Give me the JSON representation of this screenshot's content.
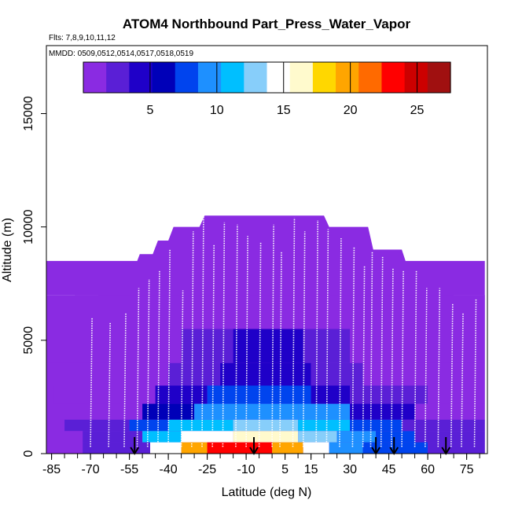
{
  "chart_data": {
    "type": "heatmap",
    "title": "ATOM4 Northbound Part_Press_Water_Vapor",
    "flights_label": "Flts: 7,8,9,10,11,12",
    "dates_label": "MMDD: 0509,0512,0514,0517,0518,0519",
    "xlabel": "Latitude (deg N)",
    "ylabel": "Altitude (m)",
    "xlim": [
      -87,
      83
    ],
    "ylim": [
      0,
      18000
    ],
    "x_ticks": [
      -85,
      -70,
      -55,
      -40,
      -25,
      -10,
      5,
      15,
      30,
      45,
      60,
      75
    ],
    "y_ticks": [
      0,
      5000,
      10000,
      15000
    ],
    "colorbar": {
      "min": 0,
      "max": 27.5,
      "ticks": [
        5,
        10,
        15,
        20,
        25
      ],
      "colors": [
        "#8a2be2",
        "#5a1fd6",
        "#1f00c8",
        "#0000b8",
        "#0044ee",
        "#1e90ff",
        "#00bfff",
        "#87cefa",
        "#ffffff",
        "#fffacd",
        "#ffd700",
        "#ffa500",
        "#ff6a00",
        "#ff0000",
        "#cc0000",
        "#a01010"
      ]
    },
    "ceiling_profile": [
      {
        "lat": -87,
        "top": 6000
      },
      {
        "lat": -78,
        "top": 6000
      },
      {
        "lat": -76,
        "top": 7000
      },
      {
        "lat": -67,
        "top": 7000
      },
      {
        "lat": -65,
        "top": 7700
      },
      {
        "lat": -60,
        "top": 7700
      },
      {
        "lat": -58,
        "top": 8200
      },
      {
        "lat": -53,
        "top": 8200
      },
      {
        "lat": -51,
        "top": 8800
      },
      {
        "lat": -46,
        "top": 8800
      },
      {
        "lat": -44,
        "top": 9400
      },
      {
        "lat": -40,
        "top": 9400
      },
      {
        "lat": -38,
        "top": 10000
      },
      {
        "lat": -28,
        "top": 10000
      },
      {
        "lat": -26,
        "top": 10500
      },
      {
        "lat": 20,
        "top": 10500
      },
      {
        "lat": 22,
        "top": 10000
      },
      {
        "lat": 37,
        "top": 10000
      },
      {
        "lat": 39,
        "top": 9000
      },
      {
        "lat": 50,
        "top": 9000
      },
      {
        "lat": 52,
        "top": 8300
      },
      {
        "lat": 60,
        "top": 8300
      },
      {
        "lat": 62,
        "top": 7600
      },
      {
        "lat": 68,
        "top": 7600
      },
      {
        "lat": 70,
        "top": 7000
      },
      {
        "lat": 82,
        "top": 7000
      }
    ],
    "layers": [
      {
        "y0": 0,
        "y1": 500,
        "x0": -73,
        "x1": 82,
        "segments": [
          {
            "from": -73,
            "to": -47,
            "value": 3
          },
          {
            "from": -47,
            "to": -35,
            "value": 15
          },
          {
            "from": -35,
            "to": -25,
            "value": 20
          },
          {
            "from": -25,
            "to": 0,
            "value": 23
          },
          {
            "from": 0,
            "to": 12,
            "value": 20
          },
          {
            "from": 12,
            "to": 22,
            "value": 15
          },
          {
            "from": 22,
            "to": 35,
            "value": 10
          },
          {
            "from": 35,
            "to": 45,
            "value": 8
          },
          {
            "from": 45,
            "to": 60,
            "value": 8
          },
          {
            "from": 60,
            "to": 82,
            "value": 3
          }
        ]
      },
      {
        "y0": 500,
        "y1": 1000,
        "x0": -73,
        "x1": 82,
        "segments": [
          {
            "from": -73,
            "to": -50,
            "value": 3
          },
          {
            "from": -50,
            "to": -35,
            "value": 12
          },
          {
            "from": -35,
            "to": -15,
            "value": 15
          },
          {
            "from": -15,
            "to": 10,
            "value": 16
          },
          {
            "from": 10,
            "to": 25,
            "value": 13
          },
          {
            "from": 25,
            "to": 40,
            "value": 9
          },
          {
            "from": 40,
            "to": 55,
            "value": 7
          },
          {
            "from": 55,
            "to": 82,
            "value": 3
          }
        ]
      },
      {
        "y0": 1000,
        "y1": 1500,
        "x0": -80,
        "x1": 82,
        "segments": [
          {
            "from": -80,
            "to": -55,
            "value": 2
          },
          {
            "from": -55,
            "to": -40,
            "value": 7
          },
          {
            "from": -40,
            "to": -15,
            "value": 11
          },
          {
            "from": -15,
            "to": 10,
            "value": 13
          },
          {
            "from": 10,
            "to": 30,
            "value": 11
          },
          {
            "from": 30,
            "to": 50,
            "value": 7
          },
          {
            "from": 50,
            "to": 82,
            "value": 3
          }
        ]
      },
      {
        "y0": 1500,
        "y1": 2200,
        "x0": -82,
        "x1": 82,
        "segments": [
          {
            "from": -82,
            "to": -50,
            "value": 1.5
          },
          {
            "from": -50,
            "to": -30,
            "value": 6
          },
          {
            "from": -30,
            "to": -10,
            "value": 9
          },
          {
            "from": -10,
            "to": 10,
            "value": 10
          },
          {
            "from": 10,
            "to": 30,
            "value": 9
          },
          {
            "from": 30,
            "to": 55,
            "value": 5
          },
          {
            "from": 55,
            "to": 82,
            "value": 1.5
          }
        ]
      },
      {
        "y0": 2200,
        "y1": 3000,
        "x0": -84,
        "x1": 82,
        "segments": [
          {
            "from": -84,
            "to": -45,
            "value": 1.5
          },
          {
            "from": -45,
            "to": -25,
            "value": 4
          },
          {
            "from": -25,
            "to": 15,
            "value": 7
          },
          {
            "from": 15,
            "to": 30,
            "value": 5
          },
          {
            "from": 30,
            "to": 60,
            "value": 2.5
          },
          {
            "from": 60,
            "to": 82,
            "value": 1.5
          }
        ]
      },
      {
        "y0": 3000,
        "y1": 4000,
        "x0": -87,
        "x1": 82,
        "segments": [
          {
            "from": -87,
            "to": -40,
            "value": 1.2
          },
          {
            "from": -40,
            "to": -20,
            "value": 2.5
          },
          {
            "from": -20,
            "to": 15,
            "value": 4.5
          },
          {
            "from": 15,
            "to": 35,
            "value": 2.5
          },
          {
            "from": 35,
            "to": 82,
            "value": 1.2
          }
        ]
      },
      {
        "y0": 4000,
        "y1": 5500,
        "x0": -87,
        "x1": 82,
        "segments": [
          {
            "from": -87,
            "to": -35,
            "value": 0.8
          },
          {
            "from": -35,
            "to": -15,
            "value": 1.8
          },
          {
            "from": -15,
            "to": 12,
            "value": 3.5
          },
          {
            "from": 12,
            "to": 30,
            "value": 1.8
          },
          {
            "from": 30,
            "to": 82,
            "value": 0.8
          }
        ]
      },
      {
        "y0": 5500,
        "y1": 7000,
        "x0": -87,
        "x1": 82,
        "segments": [
          {
            "from": -87,
            "to": -20,
            "value": 0.4
          },
          {
            "from": -20,
            "to": 10,
            "value": 1.6
          },
          {
            "from": 10,
            "to": 82,
            "value": 0.4
          }
        ]
      },
      {
        "y0": 7000,
        "y1": 8500,
        "x0": -87,
        "x1": 82,
        "segments": [
          {
            "from": -87,
            "to": -10,
            "value": 0.2
          },
          {
            "from": -10,
            "to": 5,
            "value": 1.0
          },
          {
            "from": 5,
            "to": 82,
            "value": 0.2
          }
        ]
      }
    ],
    "profiles": [
      {
        "lat": -70,
        "base": 300,
        "top": 6000
      },
      {
        "lat": -63,
        "base": 300,
        "top": 5800
      },
      {
        "lat": -57,
        "base": 300,
        "top": 6200
      },
      {
        "lat": -52,
        "base": 300,
        "top": 7300
      },
      {
        "lat": -48,
        "base": 300,
        "top": 7700
      },
      {
        "lat": -44,
        "base": 300,
        "top": 8100
      },
      {
        "lat": -40,
        "base": 300,
        "top": 9000
      },
      {
        "lat": -35,
        "base": 300,
        "top": 7200
      },
      {
        "lat": -31,
        "base": 300,
        "top": 9800
      },
      {
        "lat": -27,
        "base": 300,
        "top": 10900
      },
      {
        "lat": -23,
        "base": 300,
        "top": 9200
      },
      {
        "lat": -19,
        "base": 300,
        "top": 10200
      },
      {
        "lat": -14,
        "base": 300,
        "top": 10100
      },
      {
        "lat": -10,
        "base": 300,
        "top": 9600
      },
      {
        "lat": -5,
        "base": 300,
        "top": 9300
      },
      {
        "lat": 0,
        "base": 300,
        "top": 10100
      },
      {
        "lat": 3,
        "base": 300,
        "top": 8900
      },
      {
        "lat": 8,
        "base": 300,
        "top": 10400
      },
      {
        "lat": 12,
        "base": 300,
        "top": 9800
      },
      {
        "lat": 17,
        "base": 300,
        "top": 10300
      },
      {
        "lat": 21,
        "base": 300,
        "top": 9900
      },
      {
        "lat": 26,
        "base": 300,
        "top": 9500
      },
      {
        "lat": 31,
        "base": 300,
        "top": 9100
      },
      {
        "lat": 35,
        "base": 300,
        "top": 8300
      },
      {
        "lat": 38,
        "base": 300,
        "top": 8900
      },
      {
        "lat": 42,
        "base": 300,
        "top": 8700
      },
      {
        "lat": 46,
        "base": 300,
        "top": 8200
      },
      {
        "lat": 50,
        "base": 300,
        "top": 8100
      },
      {
        "lat": 55,
        "base": 300,
        "top": 8100
      },
      {
        "lat": 59,
        "base": 300,
        "top": 7300
      },
      {
        "lat": 64,
        "base": 300,
        "top": 7300
      },
      {
        "lat": 69,
        "base": 300,
        "top": 6600
      },
      {
        "lat": 73,
        "base": 300,
        "top": 6200
      },
      {
        "lat": 78,
        "base": 300,
        "top": 6800
      }
    ],
    "arrow_lats": [
      -53,
      -7,
      40,
      47,
      67
    ]
  }
}
